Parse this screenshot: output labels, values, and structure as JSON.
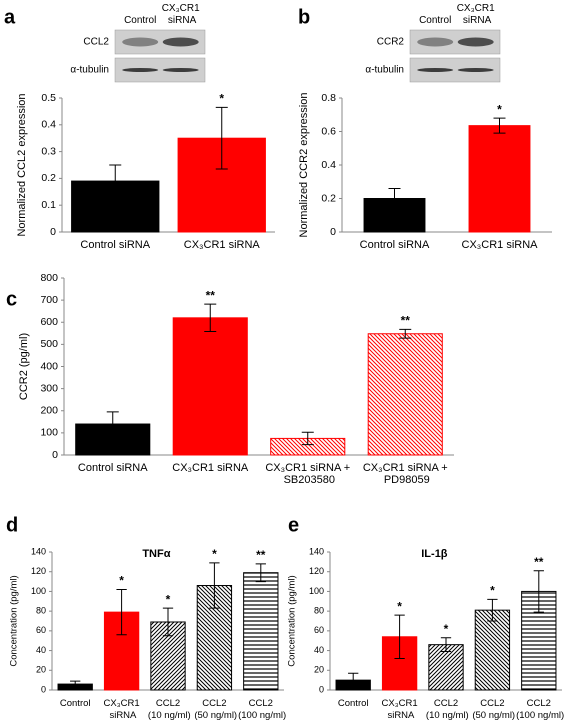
{
  "chart_data": [
    {
      "type": "bar",
      "label": "a",
      "blot": {
        "columns": [
          "Control",
          "CX₃CR1 siRNA"
        ],
        "rows": [
          "CCL2",
          "α-tubulin"
        ]
      },
      "ylabel": "Normalized CCL2 expression",
      "categories": [
        "Control siRNA",
        "CX₃CR1 siRNA"
      ],
      "values": [
        0.19,
        0.35
      ],
      "errors": [
        0.06,
        0.115
      ],
      "annotations": [
        null,
        "*"
      ],
      "colors": [
        "#000000",
        "#ff0000"
      ],
      "hatches": [
        null,
        null
      ],
      "ylim": [
        0,
        0.5
      ],
      "yticks": [
        0,
        0.1,
        0.2,
        0.3,
        0.4,
        0.5
      ]
    },
    {
      "type": "bar",
      "label": "b",
      "blot": {
        "columns": [
          "Control",
          "CX₃CR1 siRNA"
        ],
        "rows": [
          "CCR2",
          "α-tubulin"
        ]
      },
      "ylabel": "Normalized CCR2 expression",
      "categories": [
        "Control siRNA",
        "CX₃CR1 siRNA"
      ],
      "values": [
        0.2,
        0.635
      ],
      "errors": [
        0.06,
        0.045
      ],
      "annotations": [
        null,
        "*"
      ],
      "colors": [
        "#000000",
        "#ff0000"
      ],
      "hatches": [
        null,
        null
      ],
      "ylim": [
        0,
        0.8
      ],
      "yticks": [
        0,
        0.2,
        0.4,
        0.6,
        0.8
      ]
    },
    {
      "type": "bar",
      "label": "c",
      "ylabel": "CCR2 (pg/ml)",
      "categories": [
        "Control siRNA",
        "CX₃CR1 siRNA",
        "CX₃CR1 siRNA + SB203580",
        "CX₃CR1 siRNA + PD98059"
      ],
      "values": [
        140,
        620,
        75,
        548
      ],
      "errors": [
        55,
        62,
        28,
        20
      ],
      "annotations": [
        null,
        "**",
        null,
        "**"
      ],
      "colors": [
        "#000000",
        "#ff0000",
        "#ff0000",
        "#ff0000"
      ],
      "hatches": [
        null,
        null,
        "diagonal-down",
        "diagonal-down"
      ],
      "ylim": [
        0,
        800
      ],
      "yticks": [
        0,
        100,
        200,
        300,
        400,
        500,
        600,
        700,
        800
      ]
    },
    {
      "type": "bar",
      "label": "d",
      "title": "TNFα",
      "ylabel": "Concentration (pg/ml)",
      "categories": [
        "Control",
        "CX₃CR1 siRNA",
        "CCL2 (10 ng/ml)",
        "CCL2 (50 ng/ml)",
        "CCL2 (100 ng/ml)"
      ],
      "values": [
        6,
        79,
        69,
        106,
        119
      ],
      "errors": [
        3,
        23,
        14,
        23,
        9
      ],
      "annotations": [
        null,
        "*",
        "*",
        "*",
        "**"
      ],
      "colors": [
        "#000000",
        "#ff0000",
        "#000000",
        "#000000",
        "#000000"
      ],
      "hatches": [
        null,
        null,
        "diagonal-up",
        "diagonal-down",
        "horizontal"
      ],
      "ylim": [
        0,
        140
      ],
      "yticks": [
        0,
        20,
        40,
        60,
        80,
        100,
        120,
        140
      ]
    },
    {
      "type": "bar",
      "label": "e",
      "title": "IL-1β",
      "ylabel": "Concentration (pg/ml)",
      "categories": [
        "Control",
        "CX₃CR1 siRNA",
        "CCL2 (10 ng/ml)",
        "CCL2 (50 ng/ml)",
        "CCL2 (100 ng/ml)"
      ],
      "values": [
        10,
        54,
        46,
        81,
        100
      ],
      "errors": [
        7,
        22,
        7,
        11,
        21
      ],
      "annotations": [
        null,
        "*",
        "*",
        "*",
        "**"
      ],
      "colors": [
        "#000000",
        "#ff0000",
        "#000000",
        "#000000",
        "#000000"
      ],
      "hatches": [
        null,
        null,
        "diagonal-up",
        "diagonal-down",
        "horizontal"
      ],
      "ylim": [
        0,
        140
      ],
      "yticks": [
        0,
        20,
        40,
        60,
        80,
        100,
        120,
        140
      ]
    }
  ]
}
